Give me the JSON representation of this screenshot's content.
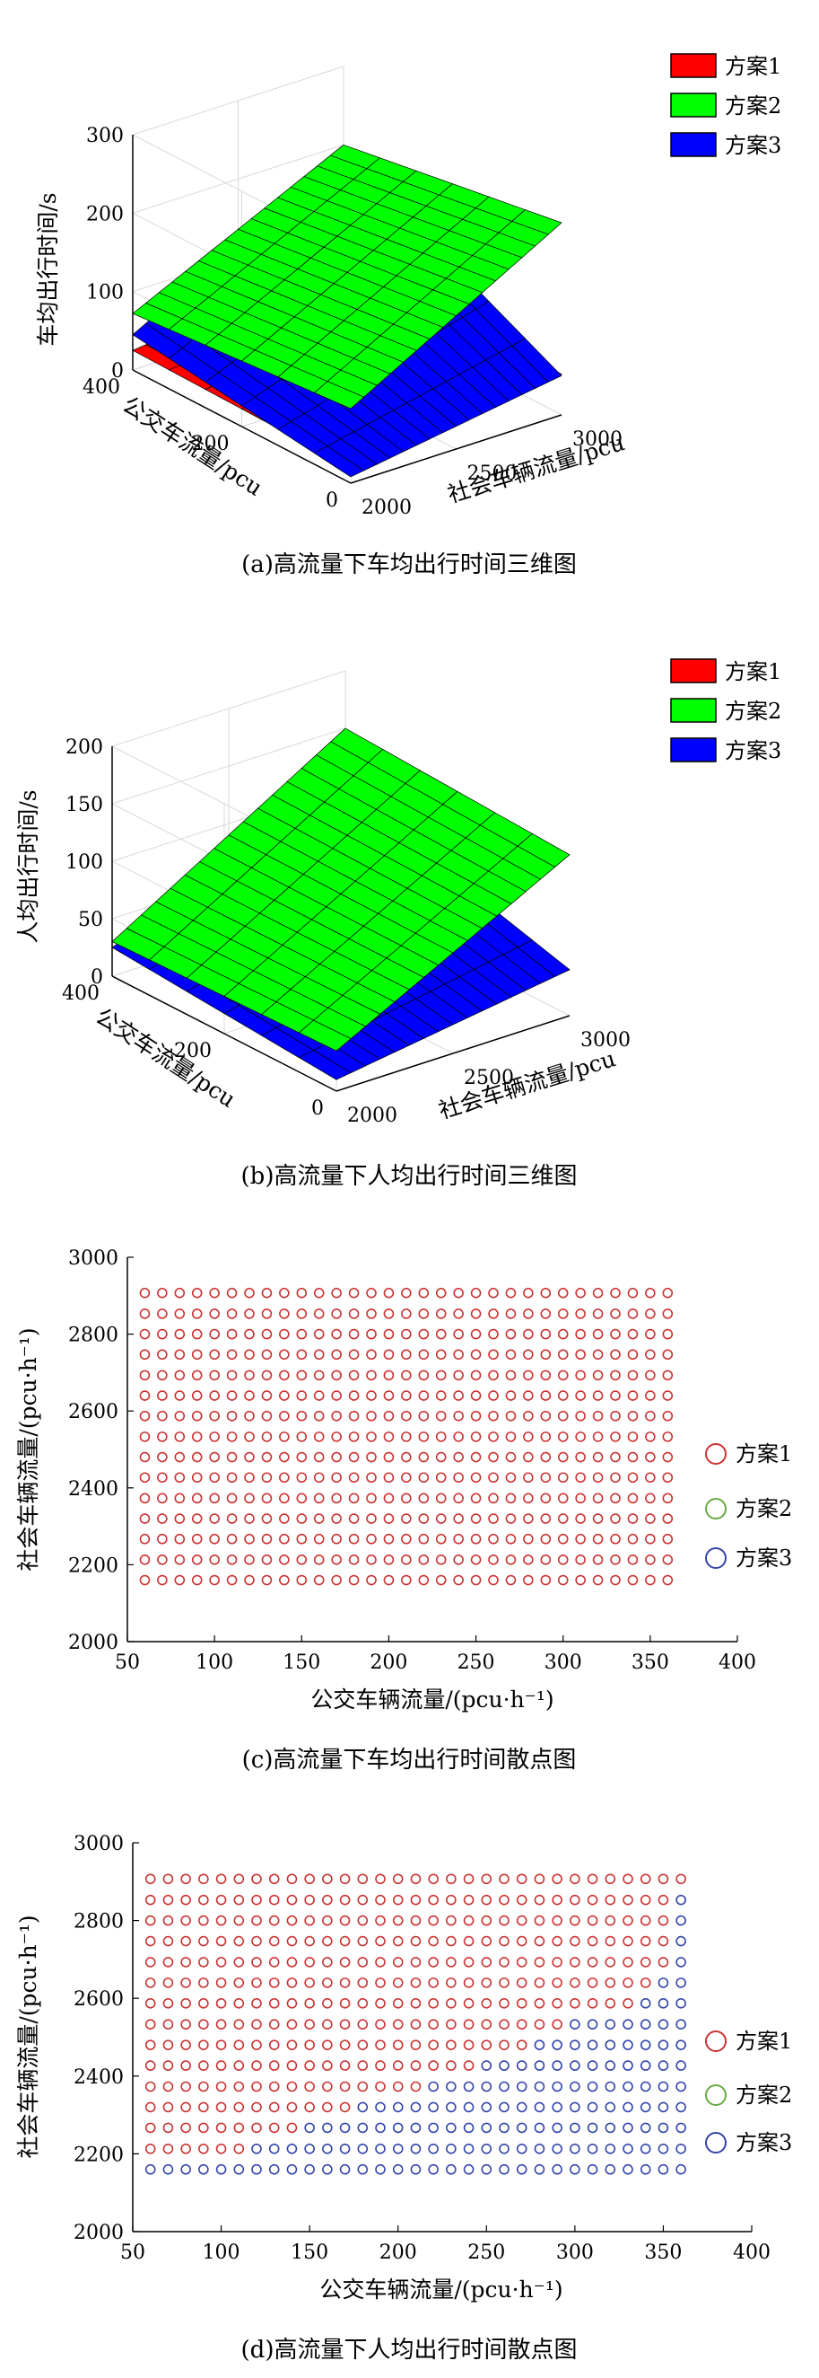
{
  "colors": {
    "plan1": "#ff0000",
    "plan2": "#00ff00",
    "plan3": "#0000ff",
    "scatter1": "#cc3333",
    "scatter2": "#66aa44",
    "scatter3": "#3344aa"
  },
  "legend": [
    "方案1",
    "方案2",
    "方案3"
  ],
  "chart_data": [
    {
      "type": "surface",
      "caption": "(a)高流量下车均出行时间三维图",
      "xlabel": "社会车辆流量/pcu",
      "ylabel": "公交车流量/pcu",
      "zlabel": "车均出行时间/s",
      "xlim": [
        2000,
        3000
      ],
      "ylim": [
        0,
        400
      ],
      "zlim": [
        0,
        300
      ],
      "xticks": [
        "2000",
        "2500",
        "3000"
      ],
      "yticks": [
        "0",
        "200",
        "400"
      ],
      "zticks": [
        "0",
        "100",
        "200",
        "300"
      ],
      "series": [
        {
          "name": "方案1",
          "corners_z": {
            "x2000_y0": 20,
            "x3000_y0": 52,
            "x2000_y400": 25,
            "x3000_y400": 55
          }
        },
        {
          "name": "方案2",
          "corners_z": {
            "x2000_y0": 95,
            "x3000_y0": 245,
            "x2000_y400": 72,
            "x3000_y400": 200
          }
        },
        {
          "name": "方案3",
          "corners_z": {
            "x2000_y0": 8,
            "x3000_y0": 50,
            "x2000_y400": 45,
            "x3000_y400": 190
          }
        }
      ]
    },
    {
      "type": "surface",
      "caption": "(b)高流量下人均出行时间三维图",
      "xlabel": "社会车辆流量/pcu",
      "ylabel": "公交车流量/pcu",
      "zlabel": "人均出行时间/s",
      "xlim": [
        2000,
        3000
      ],
      "ylim": [
        0,
        400
      ],
      "zlim": [
        0,
        200
      ],
      "xticks": [
        "2000",
        "2500",
        "3000"
      ],
      "yticks": [
        "0",
        "200",
        "400"
      ],
      "zticks": [
        "0",
        "50",
        "100",
        "150",
        "200"
      ],
      "series": [
        {
          "name": "方案1",
          "corners_z": {
            "x2000_y0": 15,
            "x3000_y0": 40,
            "x2000_y400": 25,
            "x3000_y400": 42
          }
        },
        {
          "name": "方案2",
          "corners_z": {
            "x2000_y0": 35,
            "x3000_y0": 140,
            "x2000_y400": 30,
            "x3000_y400": 150
          }
        },
        {
          "name": "方案3",
          "corners_z": {
            "x2000_y0": 10,
            "x3000_y0": 40,
            "x2000_y400": 25,
            "x3000_y400": 95
          }
        }
      ]
    },
    {
      "type": "scatter",
      "caption": "(c)高流量下车均出行时间散点图",
      "xlabel": "公交车辆流量/(pcu·h⁻¹)",
      "ylabel": "社会车辆流量/(pcu·h⁻¹)",
      "xlim": [
        50,
        400
      ],
      "ylim": [
        2000,
        3000
      ],
      "xticks": [
        "50",
        "100",
        "150",
        "200",
        "250",
        "300",
        "350",
        "400"
      ],
      "yticks": [
        "2000",
        "2200",
        "2400",
        "2600",
        "2800",
        "3000"
      ],
      "grid": {
        "x_start": 60,
        "x_step": 10,
        "x_count": 31,
        "y_values": [
          2160,
          2213,
          2267,
          2320,
          2373,
          2427,
          2480,
          2533,
          2587,
          2640,
          2693,
          2747,
          2800,
          2853,
          2907
        ]
      },
      "series": [
        {
          "name": "方案1",
          "rule": "all points"
        },
        {
          "name": "方案2",
          "rule": "none"
        },
        {
          "name": "方案3",
          "rule": "none"
        }
      ]
    },
    {
      "type": "scatter",
      "caption": "(d)高流量下人均出行时间散点图",
      "xlabel": "公交车辆流量/(pcu·h⁻¹)",
      "ylabel": "社会车辆流量/(pcu·h⁻¹)",
      "xlim": [
        50,
        400
      ],
      "ylim": [
        2000,
        3000
      ],
      "xticks": [
        "50",
        "100",
        "150",
        "200",
        "250",
        "300",
        "350",
        "400"
      ],
      "yticks": [
        "2000",
        "2200",
        "2400",
        "2600",
        "2800",
        "3000"
      ],
      "grid": {
        "x_start": 60,
        "x_step": 10,
        "x_count": 31,
        "y_values": [
          2160,
          2213,
          2267,
          2320,
          2373,
          2427,
          2480,
          2533,
          2587,
          2640,
          2693,
          2747,
          2800,
          2853,
          2907
        ]
      },
      "series": [
        {
          "name": "方案1",
          "rule": "y above boundary"
        },
        {
          "name": "方案2",
          "rule": "none"
        },
        {
          "name": "方案3",
          "rule": "y at or below boundary"
        }
      ],
      "boundary_points": [
        [
          60,
          2160
        ],
        [
          110,
          2160
        ],
        [
          120,
          2213
        ],
        [
          180,
          2320
        ],
        [
          250,
          2427
        ],
        [
          300,
          2533
        ],
        [
          340,
          2587
        ],
        [
          355,
          2693
        ],
        [
          360,
          2853
        ]
      ]
    }
  ]
}
